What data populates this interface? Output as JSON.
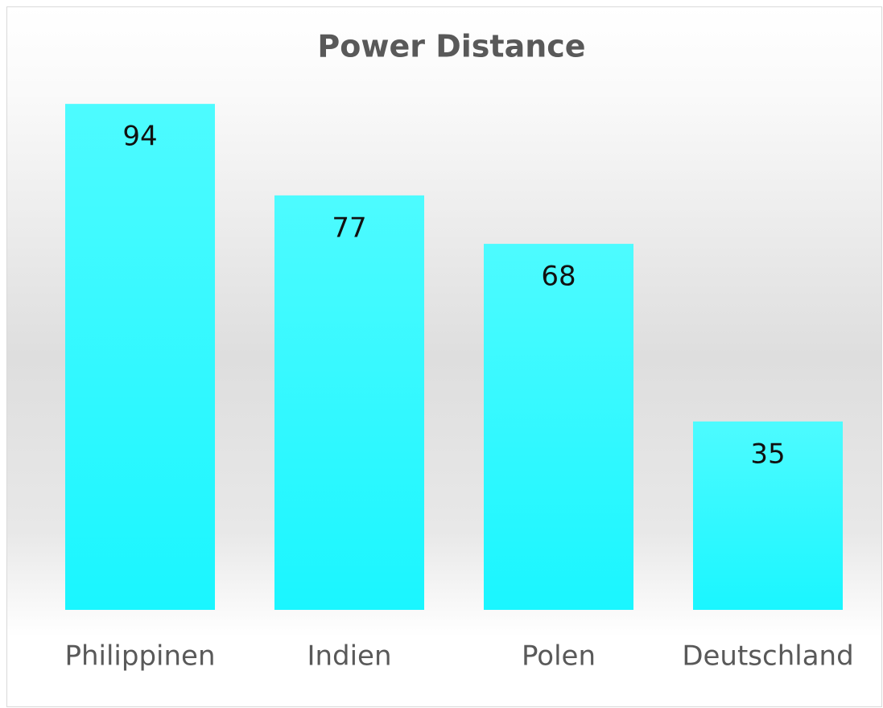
{
  "chart_data": {
    "type": "bar",
    "title": "Power Distance",
    "categories": [
      "Philippinen",
      "Indien",
      "Polen",
      "Deutschland"
    ],
    "values": [
      94,
      77,
      68,
      35
    ],
    "color": "#33f8ff",
    "ylim": [
      0,
      100
    ],
    "grid": false
  }
}
